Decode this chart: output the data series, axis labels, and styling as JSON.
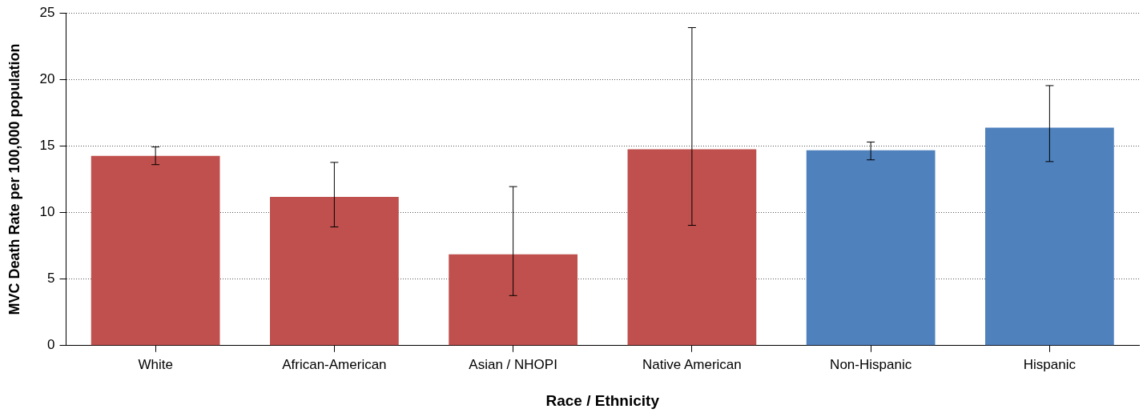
{
  "chart_data": {
    "type": "bar",
    "xlabel": "Race / Ethnicity",
    "ylabel": "MVC Death Rate per 100,000 population",
    "categories": [
      "White",
      "African-American",
      "Asian / NHOPI",
      "Native American",
      "Non-Hispanic",
      "Hispanic"
    ],
    "values": [
      14.26,
      11.17,
      6.86,
      14.75,
      14.68,
      16.38
    ],
    "colors": [
      "#c0504d",
      "#c0504d",
      "#c0504d",
      "#c0504d",
      "#4f81bd",
      "#4f81bd"
    ],
    "errors": [
      [
        13.6,
        14.93
      ],
      [
        8.92,
        13.77
      ],
      [
        3.76,
        11.95
      ],
      [
        9.04,
        23.9
      ],
      [
        13.96,
        15.3
      ],
      [
        13.83,
        19.54
      ]
    ],
    "ylim": [
      0,
      25
    ],
    "yticks": [
      0,
      5,
      10,
      15,
      20,
      25
    ],
    "grid": "y",
    "legend": false
  }
}
